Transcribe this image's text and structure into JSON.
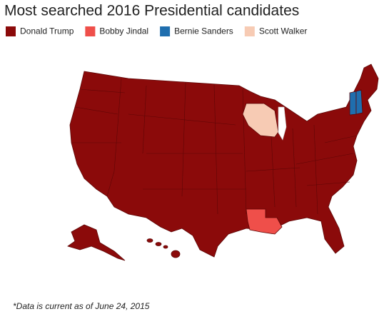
{
  "title": "Most searched 2016 Presidential candidates",
  "legend": [
    {
      "name": "Donald Trump",
      "color": "#8b0a0a"
    },
    {
      "name": "Bobby Jindal",
      "color": "#ef4f4a"
    },
    {
      "name": "Bernie Sanders",
      "color": "#1f6eae"
    },
    {
      "name": "Scott Walker",
      "color": "#f7cbb4"
    }
  ],
  "footnote": "*Data is current as of June 24, 2015"
}
